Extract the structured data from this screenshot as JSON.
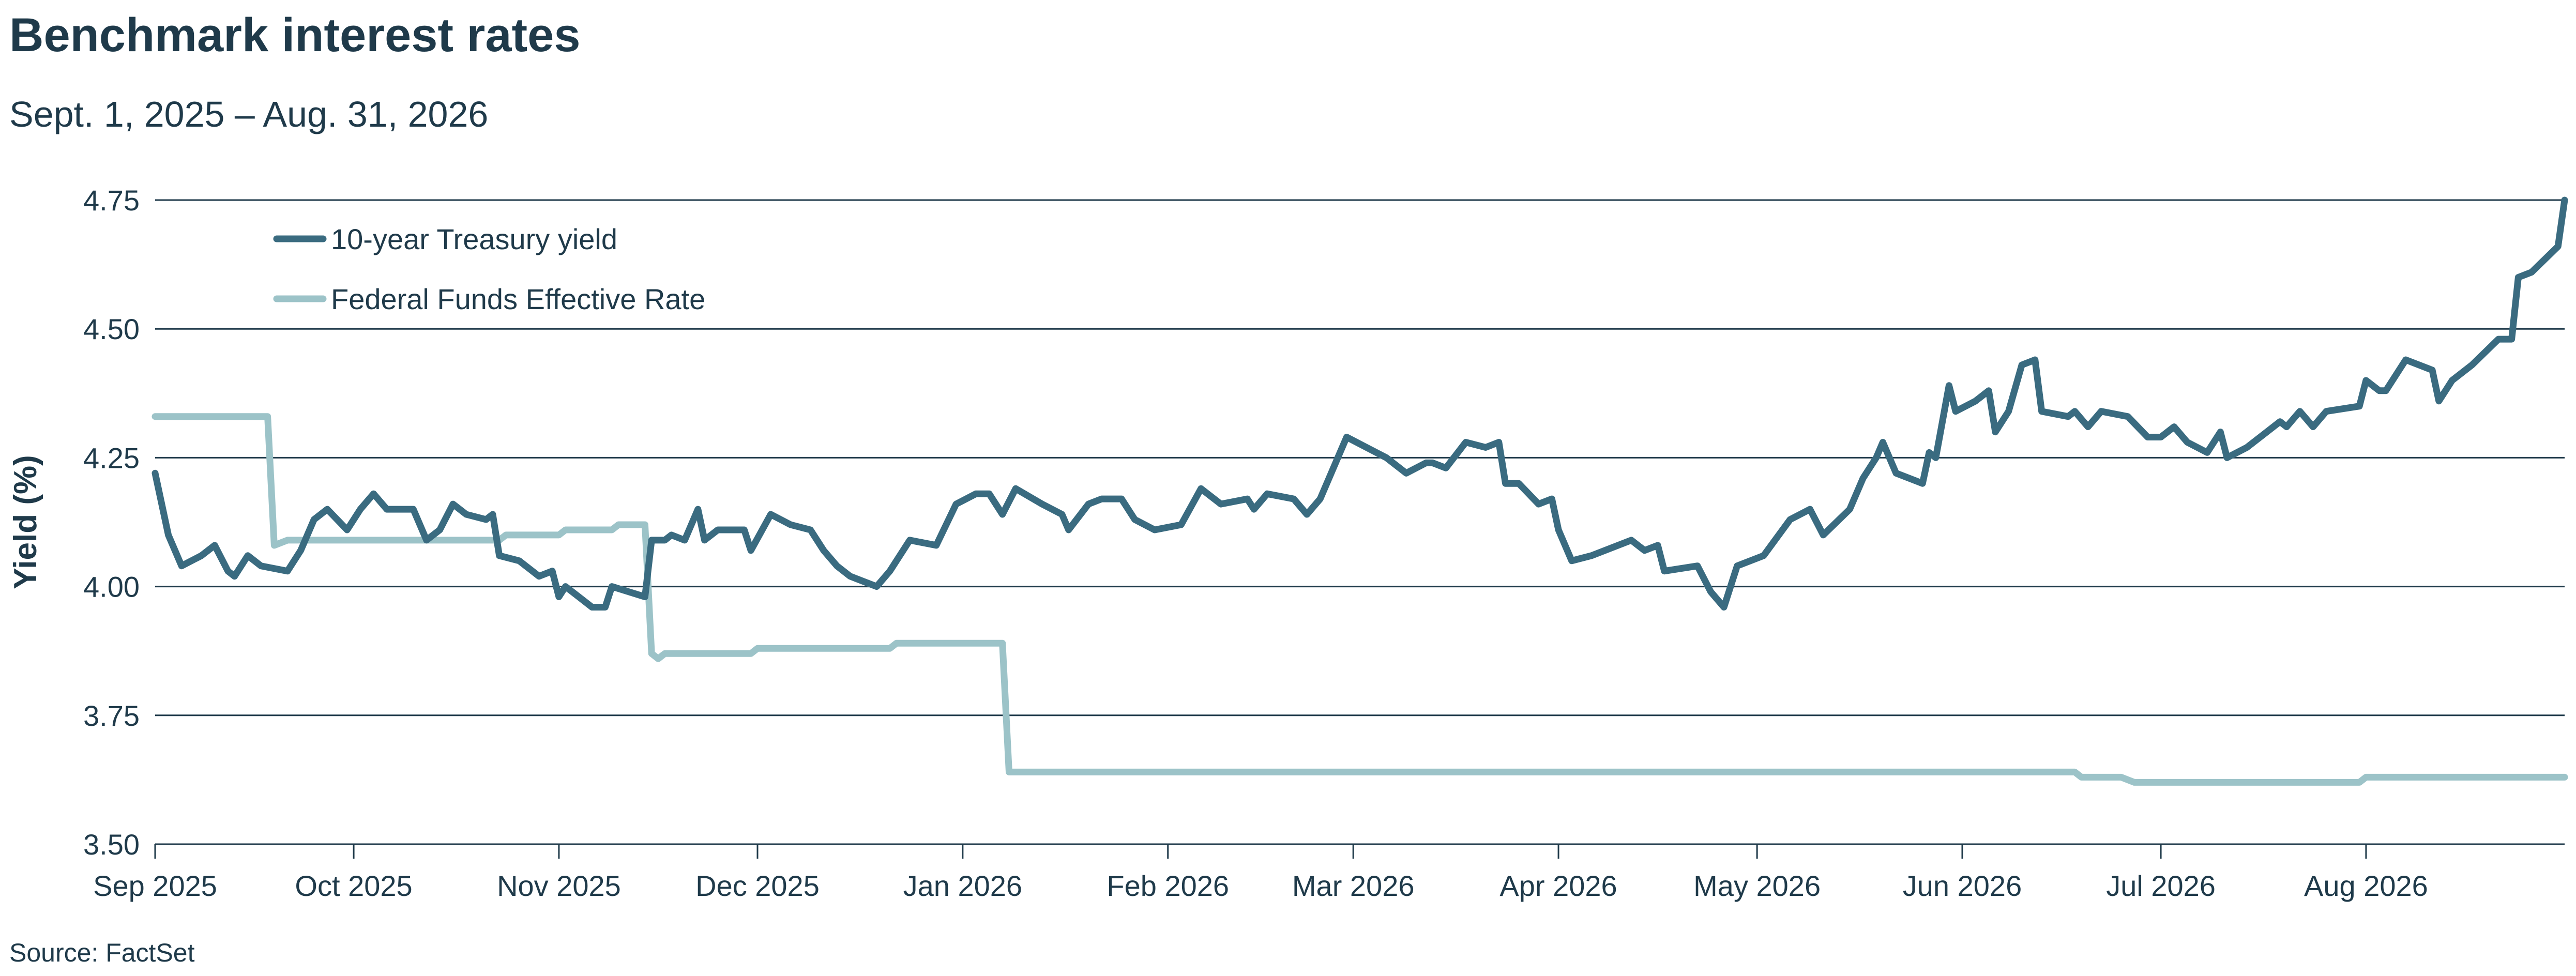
{
  "chart_data": {
    "type": "line",
    "title": "Benchmark interest rates",
    "subtitle": "Sept. 1, 2025 – Aug. 31, 2026",
    "source": "Source: FactSet",
    "xlabel": "",
    "ylabel": "Yield (%)",
    "xlim": [
      "2025-09-01",
      "2026-08-31"
    ],
    "ylim": [
      3.5,
      4.75
    ],
    "yticks": [
      3.5,
      3.75,
      4.0,
      4.25,
      4.5,
      4.75
    ],
    "ytick_labels": [
      "3.50",
      "3.75",
      "4.00",
      "4.25",
      "4.50",
      "4.75"
    ],
    "xticks": [
      "2025-09-01",
      "2025-10-01",
      "2025-11-01",
      "2025-12-01",
      "2026-01-01",
      "2026-02-01",
      "2026-03-01",
      "2026-04-01",
      "2026-05-01",
      "2026-06-01",
      "2026-07-01",
      "2026-08-01"
    ],
    "xtick_labels": [
      "Sep 2025",
      "Oct 2025",
      "Nov 2025",
      "Dec 2025",
      "Jan 2026",
      "Feb 2026",
      "Mar 2026",
      "Apr 2026",
      "May 2026",
      "Jun 2026",
      "Jul 2026",
      "Aug 2026"
    ],
    "grid": "horizontal",
    "legend_position": "top-left",
    "series": [
      {
        "name": "10-year Treasury yield",
        "color": "#3a6b80",
        "points": [
          [
            "2025-09-01",
            4.22
          ],
          [
            "2025-09-03",
            4.1
          ],
          [
            "2025-09-05",
            4.04
          ],
          [
            "2025-09-08",
            4.06
          ],
          [
            "2025-09-10",
            4.08
          ],
          [
            "2025-09-12",
            4.03
          ],
          [
            "2025-09-13",
            4.02
          ],
          [
            "2025-09-15",
            4.06
          ],
          [
            "2025-09-17",
            4.04
          ],
          [
            "2025-09-21",
            4.03
          ],
          [
            "2025-09-23",
            4.07
          ],
          [
            "2025-09-25",
            4.13
          ],
          [
            "2025-09-27",
            4.15
          ],
          [
            "2025-09-30",
            4.11
          ],
          [
            "2025-10-02",
            4.15
          ],
          [
            "2025-10-04",
            4.18
          ],
          [
            "2025-10-06",
            4.15
          ],
          [
            "2025-10-10",
            4.15
          ],
          [
            "2025-10-12",
            4.09
          ],
          [
            "2025-10-14",
            4.11
          ],
          [
            "2025-10-16",
            4.16
          ],
          [
            "2025-10-18",
            4.14
          ],
          [
            "2025-10-21",
            4.13
          ],
          [
            "2025-10-22",
            4.14
          ],
          [
            "2025-10-23",
            4.06
          ],
          [
            "2025-10-26",
            4.05
          ],
          [
            "2025-10-29",
            4.02
          ],
          [
            "2025-10-31",
            4.03
          ],
          [
            "2025-11-01",
            3.98
          ],
          [
            "2025-11-02",
            4.0
          ],
          [
            "2025-11-04",
            3.98
          ],
          [
            "2025-11-06",
            3.96
          ],
          [
            "2025-11-08",
            3.96
          ],
          [
            "2025-11-09",
            4.0
          ],
          [
            "2025-11-14",
            3.98
          ],
          [
            "2025-11-15",
            4.09
          ],
          [
            "2025-11-17",
            4.09
          ],
          [
            "2025-11-18",
            4.1
          ],
          [
            "2025-11-20",
            4.09
          ],
          [
            "2025-11-22",
            4.15
          ],
          [
            "2025-11-23",
            4.09
          ],
          [
            "2025-11-25",
            4.11
          ],
          [
            "2025-11-29",
            4.11
          ],
          [
            "2025-11-30",
            4.07
          ],
          [
            "2025-12-03",
            4.14
          ],
          [
            "2025-12-06",
            4.12
          ],
          [
            "2025-12-09",
            4.11
          ],
          [
            "2025-12-11",
            4.07
          ],
          [
            "2025-12-13",
            4.04
          ],
          [
            "2025-12-15",
            4.02
          ],
          [
            "2025-12-19",
            4.0
          ],
          [
            "2025-12-21",
            4.03
          ],
          [
            "2025-12-24",
            4.09
          ],
          [
            "2025-12-28",
            4.08
          ],
          [
            "2025-12-31",
            4.16
          ],
          [
            "2026-01-03",
            4.18
          ],
          [
            "2026-01-05",
            4.18
          ],
          [
            "2026-01-07",
            4.14
          ],
          [
            "2026-01-09",
            4.19
          ],
          [
            "2026-01-13",
            4.16
          ],
          [
            "2026-01-16",
            4.14
          ],
          [
            "2026-01-17",
            4.11
          ],
          [
            "2026-01-20",
            4.16
          ],
          [
            "2026-01-22",
            4.17
          ],
          [
            "2026-01-25",
            4.17
          ],
          [
            "2026-01-27",
            4.13
          ],
          [
            "2026-01-30",
            4.11
          ],
          [
            "2026-02-03",
            4.12
          ],
          [
            "2026-02-06",
            4.19
          ],
          [
            "2026-02-09",
            4.16
          ],
          [
            "2026-02-13",
            4.17
          ],
          [
            "2026-02-14",
            4.15
          ],
          [
            "2026-02-16",
            4.18
          ],
          [
            "2026-02-20",
            4.17
          ],
          [
            "2026-02-22",
            4.14
          ],
          [
            "2026-02-24",
            4.17
          ],
          [
            "2026-02-28",
            4.29
          ],
          [
            "2026-03-03",
            4.27
          ],
          [
            "2026-03-06",
            4.25
          ],
          [
            "2026-03-09",
            4.22
          ],
          [
            "2026-03-12",
            4.24
          ],
          [
            "2026-03-13",
            4.24
          ],
          [
            "2026-03-15",
            4.23
          ],
          [
            "2026-03-18",
            4.28
          ],
          [
            "2026-03-21",
            4.27
          ],
          [
            "2026-03-23",
            4.28
          ],
          [
            "2026-03-24",
            4.2
          ],
          [
            "2026-03-26",
            4.2
          ],
          [
            "2026-03-29",
            4.16
          ],
          [
            "2026-03-31",
            4.17
          ],
          [
            "2026-04-01",
            4.11
          ],
          [
            "2026-04-03",
            4.05
          ],
          [
            "2026-04-06",
            4.06
          ],
          [
            "2026-04-12",
            4.09
          ],
          [
            "2026-04-14",
            4.07
          ],
          [
            "2026-04-16",
            4.08
          ],
          [
            "2026-04-17",
            4.03
          ],
          [
            "2026-04-22",
            4.04
          ],
          [
            "2026-04-24",
            3.99
          ],
          [
            "2026-04-26",
            3.96
          ],
          [
            "2026-04-28",
            4.04
          ],
          [
            "2026-05-02",
            4.06
          ],
          [
            "2026-05-06",
            4.13
          ],
          [
            "2026-05-09",
            4.15
          ],
          [
            "2026-05-11",
            4.1
          ],
          [
            "2026-05-15",
            4.15
          ],
          [
            "2026-05-17",
            4.21
          ],
          [
            "2026-05-19",
            4.25
          ],
          [
            "2026-05-20",
            4.28
          ],
          [
            "2026-05-22",
            4.22
          ],
          [
            "2026-05-26",
            4.2
          ],
          [
            "2026-05-27",
            4.26
          ],
          [
            "2026-05-28",
            4.25
          ],
          [
            "2026-05-30",
            4.39
          ],
          [
            "2026-05-31",
            4.34
          ],
          [
            "2026-06-03",
            4.36
          ],
          [
            "2026-06-05",
            4.38
          ],
          [
            "2026-06-06",
            4.3
          ],
          [
            "2026-06-08",
            4.34
          ],
          [
            "2026-06-10",
            4.43
          ],
          [
            "2026-06-12",
            4.44
          ],
          [
            "2026-06-13",
            4.34
          ],
          [
            "2026-06-17",
            4.33
          ],
          [
            "2026-06-18",
            4.34
          ],
          [
            "2026-06-20",
            4.31
          ],
          [
            "2026-06-22",
            4.34
          ],
          [
            "2026-06-26",
            4.33
          ],
          [
            "2026-06-29",
            4.29
          ],
          [
            "2026-07-01",
            4.29
          ],
          [
            "2026-07-03",
            4.31
          ],
          [
            "2026-07-05",
            4.28
          ],
          [
            "2026-07-08",
            4.26
          ],
          [
            "2026-07-10",
            4.3
          ],
          [
            "2026-07-11",
            4.25
          ],
          [
            "2026-07-14",
            4.27
          ],
          [
            "2026-07-17",
            4.3
          ],
          [
            "2026-07-19",
            4.32
          ],
          [
            "2026-07-20",
            4.31
          ],
          [
            "2026-07-22",
            4.34
          ],
          [
            "2026-07-24",
            4.31
          ],
          [
            "2026-07-26",
            4.34
          ],
          [
            "2026-07-31",
            4.35
          ],
          [
            "2026-08-01",
            4.4
          ],
          [
            "2026-08-03",
            4.38
          ],
          [
            "2026-08-04",
            4.38
          ],
          [
            "2026-08-07",
            4.44
          ],
          [
            "2026-08-11",
            4.42
          ],
          [
            "2026-08-12",
            4.36
          ],
          [
            "2026-08-14",
            4.4
          ],
          [
            "2026-08-17",
            4.43
          ],
          [
            "2026-08-21",
            4.48
          ],
          [
            "2026-08-23",
            4.48
          ],
          [
            "2026-08-24",
            4.6
          ],
          [
            "2026-08-26",
            4.61
          ],
          [
            "2026-08-30",
            4.66
          ],
          [
            "2026-08-31",
            4.75
          ]
        ]
      },
      {
        "name": "Federal Funds Effective Rate",
        "color": "#9cc3c8",
        "points": [
          [
            "2025-09-01",
            4.33
          ],
          [
            "2025-09-18",
            4.33
          ],
          [
            "2025-09-19",
            4.08
          ],
          [
            "2025-09-21",
            4.09
          ],
          [
            "2025-10-09",
            4.09
          ],
          [
            "2025-10-23",
            4.09
          ],
          [
            "2025-10-24",
            4.1
          ],
          [
            "2025-11-01",
            4.1
          ],
          [
            "2025-11-02",
            4.11
          ],
          [
            "2025-11-09",
            4.11
          ],
          [
            "2025-11-10",
            4.12
          ],
          [
            "2025-11-14",
            4.12
          ],
          [
            "2025-11-15",
            3.87
          ],
          [
            "2025-11-16",
            3.86
          ],
          [
            "2025-11-17",
            3.87
          ],
          [
            "2025-11-30",
            3.87
          ],
          [
            "2025-12-01",
            3.88
          ],
          [
            "2025-12-21",
            3.88
          ],
          [
            "2025-12-22",
            3.89
          ],
          [
            "2026-01-07",
            3.89
          ],
          [
            "2026-01-08",
            3.64
          ],
          [
            "2026-06-18",
            3.64
          ],
          [
            "2026-06-19",
            3.63
          ],
          [
            "2026-06-25",
            3.63
          ],
          [
            "2026-06-27",
            3.62
          ],
          [
            "2026-07-31",
            3.62
          ],
          [
            "2026-08-01",
            3.63
          ],
          [
            "2026-08-31",
            3.63
          ]
        ]
      }
    ]
  }
}
